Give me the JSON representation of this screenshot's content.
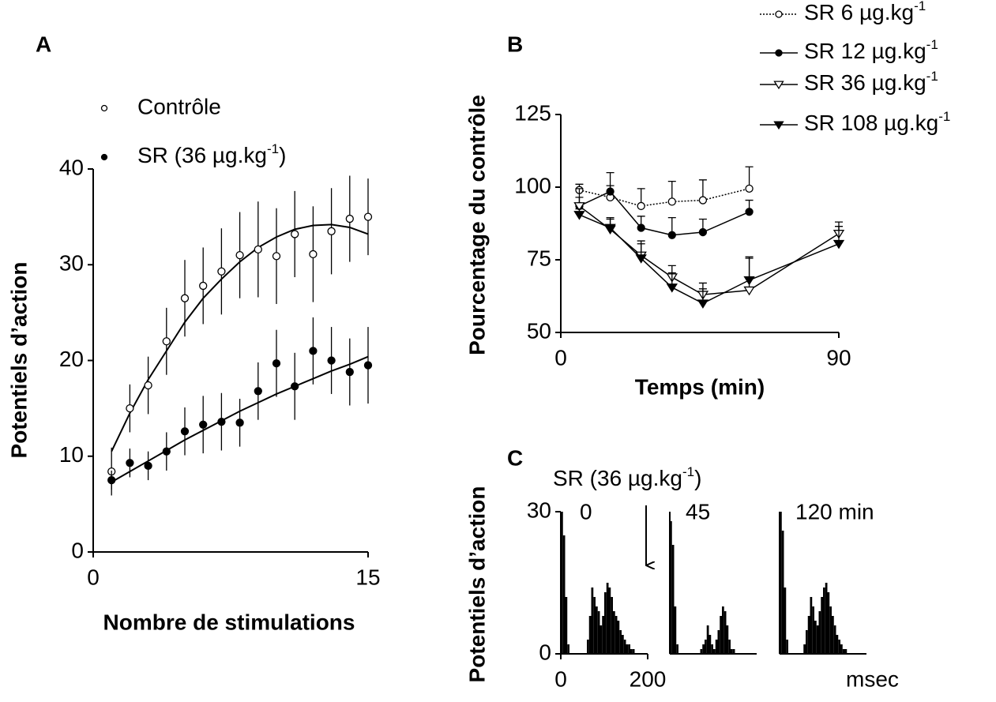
{
  "chart_data": [
    {
      "type": "scatter",
      "panel": "A",
      "xlabel": "Nombre de stimulations",
      "ylabel": "Potentiels d’action",
      "x": [
        1,
        2,
        3,
        4,
        5,
        6,
        7,
        8,
        9,
        10,
        11,
        12,
        13,
        14,
        15
      ],
      "xlim": [
        0,
        15
      ],
      "xticks": [
        0,
        15
      ],
      "ylim": [
        0,
        40
      ],
      "yticks": [
        0,
        10,
        20,
        30,
        40
      ],
      "series": [
        {
          "name": "Contrôle",
          "color": "#000000",
          "marker": "open-circle",
          "values": [
            8.4,
            15,
            17.4,
            22,
            26.5,
            27.8,
            29.3,
            31,
            31.6,
            30.9,
            33.2,
            31.1,
            33.5,
            34.8,
            35
          ],
          "errors": [
            2.5,
            2.5,
            3,
            3.5,
            4,
            4,
            4.5,
            4.5,
            5,
            5,
            4.5,
            5,
            4.5,
            4.5,
            4
          ],
          "fit": [
            10.5,
            14.5,
            18,
            21,
            24,
            26.5,
            28.5,
            30.3,
            31.8,
            32.9,
            33.7,
            34.1,
            34.2,
            33.9,
            33.2
          ]
        },
        {
          "name": "SR (36 µg.kg-1)",
          "color": "#000000",
          "marker": "filled-circle",
          "values": [
            7.5,
            9.3,
            9,
            10.5,
            12.6,
            13.3,
            13.6,
            13.5,
            16.8,
            19.7,
            17.3,
            21,
            20,
            18.8,
            19.5
          ],
          "errors": [
            1,
            1.5,
            1.5,
            2,
            2.5,
            3,
            3,
            2.5,
            3,
            3.5,
            3.5,
            3.5,
            3.5,
            3.5,
            4
          ],
          "fit": [
            7.3,
            8.4,
            9.5,
            10.6,
            11.7,
            12.7,
            13.7,
            14.7,
            15.6,
            16.5,
            17.3,
            18.1,
            18.9,
            19.6,
            20.4
          ]
        }
      ]
    },
    {
      "type": "line",
      "panel": "B",
      "xlabel": "Temps (min)",
      "ylabel": "Pourcentage du contrôle",
      "x": [
        6,
        16,
        26,
        36,
        46,
        61,
        90
      ],
      "xlim": [
        0,
        90
      ],
      "xticks": [
        0,
        90
      ],
      "ylim": [
        50,
        125
      ],
      "yticks": [
        50,
        75,
        100,
        125
      ],
      "series": [
        {
          "name": "SR 6 µg.kg-1",
          "color": "#000000",
          "marker": "open-circle",
          "dash": "dotted",
          "values": [
            99,
            96.5,
            93.5,
            95,
            95.5,
            99.5,
            null
          ],
          "errors": [
            2,
            4,
            6,
            7,
            7,
            7.5,
            null
          ]
        },
        {
          "name": "SR 12 µg.kg-1",
          "color": "#000000",
          "marker": "filled-circle",
          "dash": "solid",
          "values": [
            93.5,
            98.5,
            86,
            83.5,
            84.5,
            91.5,
            null
          ],
          "errors": [
            6,
            6.5,
            4,
            6,
            4.5,
            4,
            null
          ]
        },
        {
          "name": "SR 36 µg.kg-1",
          "color": "#000000",
          "marker": "open-triangle-down",
          "dash": "solid",
          "values": [
            93.5,
            85.5,
            76.5,
            69,
            63,
            64.5,
            84
          ],
          "errors": [
            3,
            4,
            5,
            4,
            4,
            11,
            4
          ]
        },
        {
          "name": "SR 108 µg.kg-1",
          "color": "#000000",
          "marker": "filled-triangle-down",
          "dash": "solid",
          "values": [
            90.5,
            86,
            75.5,
            65.5,
            60,
            68,
            80.5
          ],
          "errors": [
            2,
            3,
            5,
            5,
            5,
            8,
            6
          ]
        }
      ]
    },
    {
      "type": "histogram",
      "panel": "C",
      "annotation": "SR (36 µg.kg-1)",
      "title": "0",
      "ylabel": "Potentiels d’action",
      "color": "#000000",
      "xlim": [
        0,
        200
      ],
      "xticks": [
        0,
        200
      ],
      "ylim": [
        0,
        30
      ],
      "yticks": [
        0,
        30
      ],
      "bins": [
        0,
        5,
        10,
        15,
        20,
        25,
        30,
        35,
        40,
        45,
        50,
        55,
        60,
        65,
        70,
        75,
        80,
        85,
        90,
        95,
        100,
        105,
        110,
        115,
        120,
        125,
        130,
        135,
        140,
        145,
        150,
        155,
        160,
        165,
        170,
        175,
        180,
        185,
        190,
        195,
        200
      ],
      "values": [
        30,
        25,
        12,
        2,
        0,
        0,
        0,
        0,
        0,
        0,
        0,
        0,
        3,
        8,
        14,
        12,
        10,
        9,
        6,
        8,
        13,
        15,
        14,
        12,
        9,
        8,
        7,
        5,
        4,
        3,
        2,
        2,
        1,
        1,
        0,
        0,
        0,
        0,
        0,
        0
      ]
    },
    {
      "type": "histogram",
      "title": "45",
      "color": "#000000",
      "xlim": [
        0,
        200
      ],
      "ylim": [
        0,
        30
      ],
      "bins": [
        0,
        5,
        10,
        15,
        20,
        25,
        30,
        35,
        40,
        45,
        50,
        55,
        60,
        65,
        70,
        75,
        80,
        85,
        90,
        95,
        100,
        105,
        110,
        115,
        120,
        125,
        130,
        135,
        140,
        145,
        150,
        155,
        160,
        165,
        170,
        175,
        180,
        185,
        190,
        195,
        200
      ],
      "values": [
        28,
        23,
        10,
        2,
        0,
        0,
        0,
        0,
        0,
        0,
        0,
        0,
        0,
        0,
        1,
        2,
        3,
        6,
        4,
        2,
        1,
        3,
        5,
        8,
        10,
        9,
        6,
        3,
        1,
        1,
        0,
        0,
        0,
        0,
        0,
        0,
        0,
        0,
        0,
        0
      ]
    },
    {
      "type": "histogram",
      "title": "120 min",
      "xlabel": "msec",
      "color": "#000000",
      "xlim": [
        0,
        200
      ],
      "ylim": [
        0,
        30
      ],
      "bins": [
        0,
        5,
        10,
        15,
        20,
        25,
        30,
        35,
        40,
        45,
        50,
        55,
        60,
        65,
        70,
        75,
        80,
        85,
        90,
        95,
        100,
        105,
        110,
        115,
        120,
        125,
        130,
        135,
        140,
        145,
        150,
        155,
        160,
        165,
        170,
        175,
        180,
        185,
        190,
        195,
        200
      ],
      "values": [
        30,
        26,
        14,
        3,
        0,
        0,
        0,
        0,
        0,
        0,
        0,
        2,
        5,
        8,
        12,
        10,
        7,
        6,
        9,
        12,
        14,
        15,
        13,
        10,
        8,
        6,
        4,
        3,
        2,
        1,
        1,
        0,
        0,
        0,
        0,
        0,
        0,
        0,
        0,
        0
      ]
    }
  ]
}
